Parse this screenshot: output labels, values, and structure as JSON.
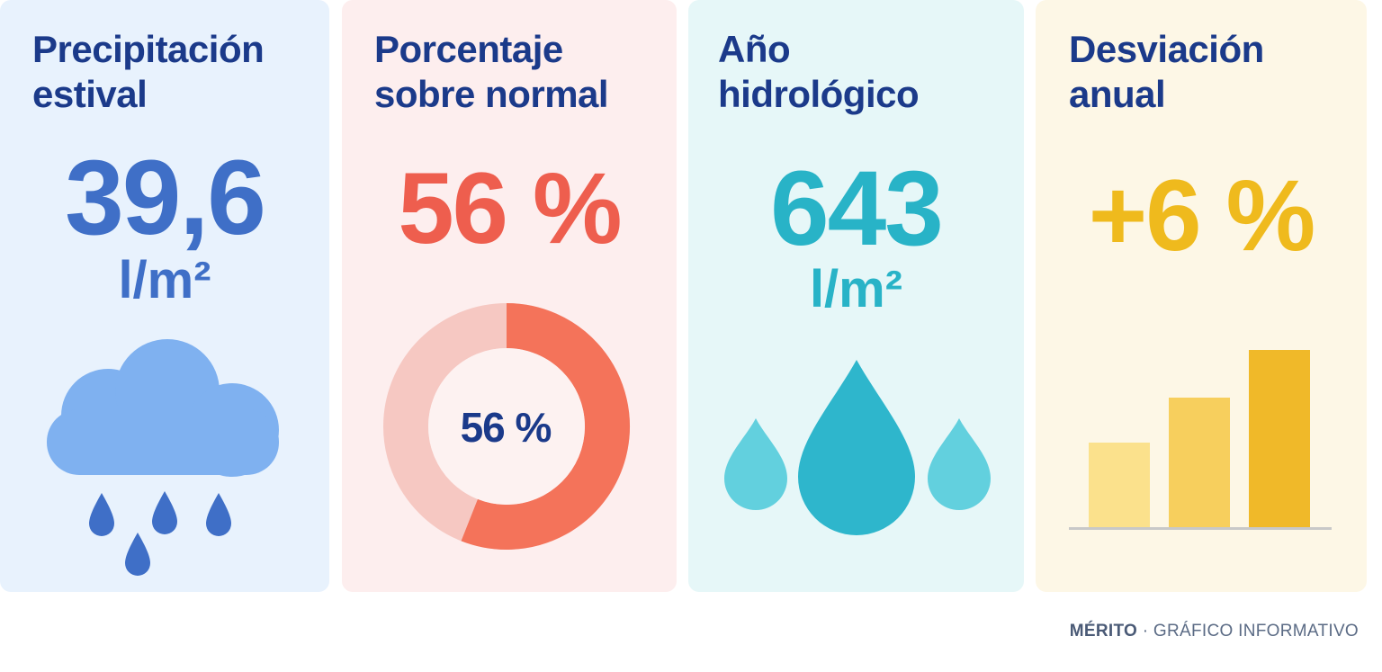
{
  "cards": [
    {
      "title_line1": "Precipitación",
      "title_line2": "estival",
      "value": "39,6",
      "unit": "l/m²",
      "icon": "rain-cloud-icon",
      "color": "#3f6fc7",
      "background": "#e8f2fd"
    },
    {
      "title_line1": "Porcentaje",
      "title_line2": "sobre normal",
      "value": "56 %",
      "donut_label": "56 %",
      "donut_fraction": 0.56,
      "icon": "donut-chart-icon",
      "color": "#ee5e4e",
      "background": "#fdeeee"
    },
    {
      "title_line1": "Año",
      "title_line2": "hidrológico",
      "value": "643",
      "unit": "l/m²",
      "icon": "water-drops-icon",
      "color": "#28b3c7",
      "background": "#e6f7f8"
    },
    {
      "title_line1": "Desviación",
      "title_line2": "anual",
      "value": "+6 %",
      "icon": "bar-chart-icon",
      "color": "#efba1d",
      "background": "#fdf7e6"
    }
  ],
  "footer": {
    "brand": "MÉRITO",
    "separator": " · ",
    "label": "GRÁFICO INFORMATIVO"
  }
}
